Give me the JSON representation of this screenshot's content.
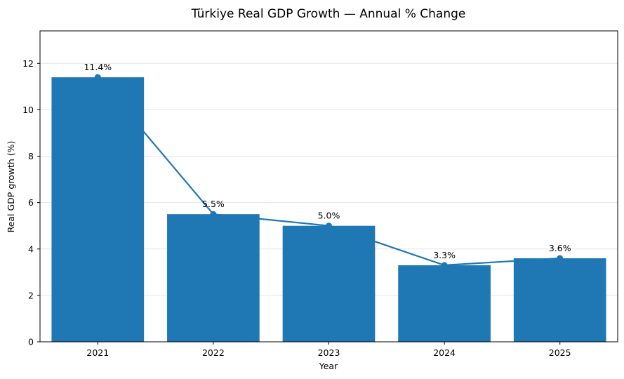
{
  "chart_data": {
    "type": "bar",
    "title": "Türkiye Real GDP Growth — Annual % Change",
    "xlabel": "Year",
    "ylabel": "Real GDP growth (%)",
    "categories": [
      "2021",
      "2022",
      "2023",
      "2024",
      "2025"
    ],
    "values": [
      11.4,
      5.5,
      5.0,
      3.3,
      3.6
    ],
    "data_labels": [
      "11.4%",
      "5.5%",
      "5.0%",
      "3.3%",
      "3.6%"
    ],
    "overlay": "line-with-markers",
    "ylim": [
      0,
      13.4
    ],
    "yticks": [
      0,
      2,
      4,
      6,
      8,
      10,
      12
    ],
    "grid": "horizontal",
    "legend": "none",
    "colors": {
      "bar": "#1f77b4",
      "line": "#1f77b4",
      "grid": "#e6e6e6"
    }
  }
}
